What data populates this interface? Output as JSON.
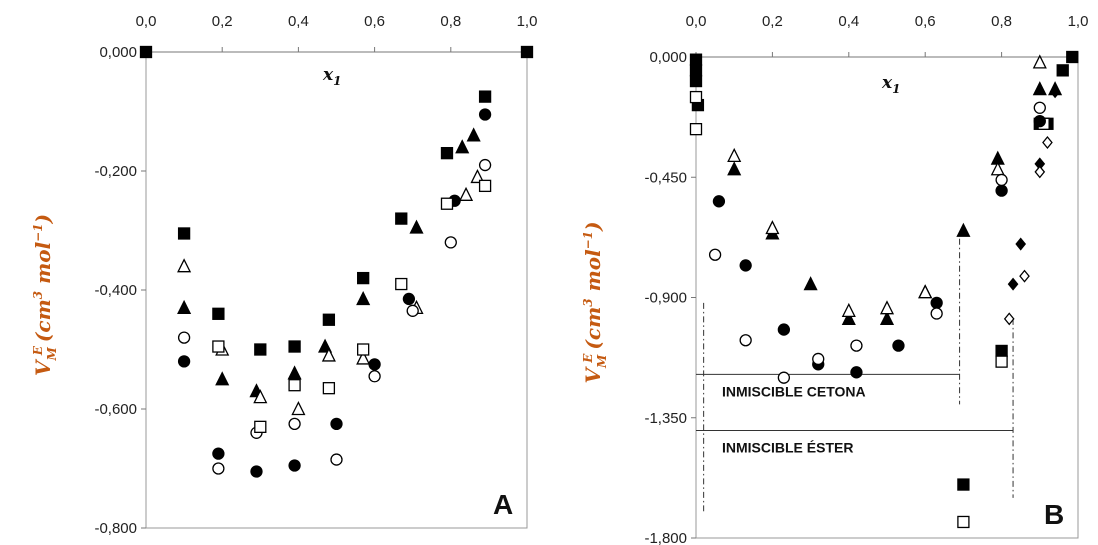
{
  "chart_data": [
    {
      "type": "scatter",
      "panel_label": "A",
      "xlabel_main": "x",
      "xlabel_sub": "1",
      "ylabel": "V",
      "ylabel_sup": "E",
      "ylabel_sub": "M",
      "ylabel_unit_open": "(cm",
      "ylabel_unit_3": "3",
      "ylabel_unit_mid": " mol",
      "ylabel_unit_exp": "−1",
      "ylabel_unit_close": ")",
      "xlim": [
        0,
        1
      ],
      "ylim": [
        -0.8,
        0
      ],
      "x_ticks": [
        "0,0",
        "0,2",
        "0,4",
        "0,6",
        "0,8",
        "1,0"
      ],
      "x_tick_values": [
        0,
        0.2,
        0.4,
        0.6,
        0.8,
        1.0
      ],
      "y_ticks": [
        "0,000",
        "-0,200",
        "-0,400",
        "-0,600",
        "-0,800"
      ],
      "y_tick_values": [
        0,
        -0.2,
        -0.4,
        -0.6,
        -0.8
      ],
      "series": [
        {
          "marker": "square-filled",
          "points": [
            [
              0,
              0
            ],
            [
              0.1,
              -0.305
            ],
            [
              0.19,
              -0.44
            ],
            [
              0.3,
              -0.5
            ],
            [
              0.39,
              -0.495
            ],
            [
              0.48,
              -0.45
            ],
            [
              0.57,
              -0.38
            ],
            [
              0.67,
              -0.28
            ],
            [
              0.79,
              -0.17
            ],
            [
              0.89,
              -0.075
            ],
            [
              1,
              0
            ]
          ]
        },
        {
          "marker": "triangle-filled",
          "points": [
            [
              0.1,
              -0.43
            ],
            [
              0.2,
              -0.55
            ],
            [
              0.29,
              -0.57
            ],
            [
              0.39,
              -0.54
            ],
            [
              0.47,
              -0.495
            ],
            [
              0.57,
              -0.415
            ],
            [
              0.71,
              -0.295
            ],
            [
              0.83,
              -0.16
            ],
            [
              0.86,
              -0.14
            ]
          ]
        },
        {
          "marker": "triangle-open",
          "points": [
            [
              0.1,
              -0.36
            ],
            [
              0.2,
              -0.5
            ],
            [
              0.3,
              -0.58
            ],
            [
              0.4,
              -0.6
            ],
            [
              0.48,
              -0.51
            ],
            [
              0.57,
              -0.515
            ],
            [
              0.71,
              -0.43
            ],
            [
              0.84,
              -0.24
            ],
            [
              0.87,
              -0.21
            ]
          ]
        },
        {
          "marker": "circle-filled",
          "points": [
            [
              0.1,
              -0.52
            ],
            [
              0.19,
              -0.675
            ],
            [
              0.29,
              -0.705
            ],
            [
              0.39,
              -0.695
            ],
            [
              0.5,
              -0.625
            ],
            [
              0.6,
              -0.525
            ],
            [
              0.69,
              -0.415
            ],
            [
              0.81,
              -0.25
            ],
            [
              0.89,
              -0.105
            ]
          ]
        },
        {
          "marker": "circle-open",
          "points": [
            [
              0.1,
              -0.48
            ],
            [
              0.19,
              -0.7
            ],
            [
              0.29,
              -0.64
            ],
            [
              0.39,
              -0.625
            ],
            [
              0.5,
              -0.685
            ],
            [
              0.6,
              -0.545
            ],
            [
              0.7,
              -0.435
            ],
            [
              0.8,
              -0.32
            ],
            [
              0.89,
              -0.19
            ]
          ]
        },
        {
          "marker": "square-open",
          "points": [
            [
              0.19,
              -0.495
            ],
            [
              0.3,
              -0.63
            ],
            [
              0.39,
              -0.56
            ],
            [
              0.48,
              -0.565
            ],
            [
              0.57,
              -0.5
            ],
            [
              0.67,
              -0.39
            ],
            [
              0.79,
              -0.255
            ],
            [
              0.89,
              -0.225
            ]
          ]
        }
      ]
    },
    {
      "type": "scatter",
      "panel_label": "B",
      "xlabel_main": "x",
      "xlabel_sub": "1",
      "ylabel": "V",
      "ylabel_sup": "E",
      "ylabel_sub": "M",
      "ylabel_unit_open": "(cm",
      "ylabel_unit_3": "3",
      "ylabel_unit_mid": " mol",
      "ylabel_unit_exp": "−1",
      "ylabel_unit_close": ")",
      "xlim": [
        0,
        1
      ],
      "ylim": [
        -1.8,
        0
      ],
      "x_ticks": [
        "0,0",
        "0,2",
        "0,4",
        "0,6",
        "0,8",
        "1,0"
      ],
      "x_tick_values": [
        0,
        0.2,
        0.4,
        0.6,
        0.8,
        1.0
      ],
      "y_ticks": [
        "0,000",
        "-0,450",
        "-0,900",
        "-1,350",
        "-1,800"
      ],
      "y_tick_values": [
        0,
        -0.45,
        -0.9,
        -1.35,
        -1.8
      ],
      "annotations": [
        {
          "text": "INMISCIBLE CETONA",
          "x_from": 0,
          "x_to": 0.69,
          "y": -1.27
        },
        {
          "text": "INMISCIBLE ÉSTER",
          "x_from": 0,
          "x_to": 0.83,
          "y": -1.48
        }
      ],
      "boundaries": [
        {
          "x": 0.02,
          "y_from": -0.92,
          "y_to": -1.7
        },
        {
          "x": 0.69,
          "y_from": -0.68,
          "y_to": -1.3
        },
        {
          "x": 0.83,
          "y_from": -0.98,
          "y_to": -1.65
        }
      ],
      "series": [
        {
          "marker": "square-filled",
          "points": [
            [
              0,
              -0.01
            ],
            [
              0,
              -0.05
            ],
            [
              0,
              -0.09
            ],
            [
              0.005,
              -0.18
            ],
            [
              0.8,
              -1.1
            ],
            [
              0.7,
              -1.6
            ],
            [
              0.9,
              -0.25
            ],
            [
              0.92,
              -0.25
            ],
            [
              0.96,
              -0.05
            ],
            [
              0.985,
              0
            ]
          ]
        },
        {
          "marker": "square-open",
          "points": [
            [
              0,
              -0.15
            ],
            [
              0,
              -0.27
            ],
            [
              0.8,
              -1.14
            ],
            [
              0.7,
              -1.74
            ],
            [
              0.91,
              -0.25
            ]
          ]
        },
        {
          "marker": "triangle-filled",
          "points": [
            [
              0.1,
              -0.42
            ],
            [
              0.2,
              -0.66
            ],
            [
              0.3,
              -0.85
            ],
            [
              0.4,
              -0.98
            ],
            [
              0.5,
              -0.98
            ],
            [
              0.6,
              -0.88
            ],
            [
              0.7,
              -0.65
            ],
            [
              0.79,
              -0.38
            ],
            [
              0.9,
              -0.12
            ],
            [
              0.94,
              -0.12
            ]
          ]
        },
        {
          "marker": "triangle-open",
          "points": [
            [
              0.1,
              -0.37
            ],
            [
              0.2,
              -0.64
            ],
            [
              0.4,
              -0.95
            ],
            [
              0.5,
              -0.94
            ],
            [
              0.6,
              -0.88
            ],
            [
              0.79,
              -0.42
            ],
            [
              0.9,
              -0.02
            ]
          ]
        },
        {
          "marker": "circle-filled",
          "points": [
            [
              0.06,
              -0.54
            ],
            [
              0.13,
              -0.78
            ],
            [
              0.23,
              -1.02
            ],
            [
              0.32,
              -1.15
            ],
            [
              0.42,
              -1.18
            ],
            [
              0.53,
              -1.08
            ],
            [
              0.63,
              -0.92
            ],
            [
              0.8,
              -0.5
            ],
            [
              0.9,
              -0.24
            ]
          ]
        },
        {
          "marker": "circle-open",
          "points": [
            [
              0.05,
              -0.74
            ],
            [
              0.13,
              -1.06
            ],
            [
              0.23,
              -1.2
            ],
            [
              0.32,
              -1.13
            ],
            [
              0.42,
              -1.08
            ],
            [
              0.63,
              -0.96
            ],
            [
              0.8,
              -0.46
            ],
            [
              0.9,
              -0.19
            ]
          ]
        },
        {
          "marker": "diamond-filled",
          "points": [
            [
              0.85,
              -0.7
            ],
            [
              0.83,
              -0.85
            ],
            [
              0.9,
              -0.4
            ],
            [
              0.94,
              -0.13
            ]
          ]
        },
        {
          "marker": "diamond-open",
          "points": [
            [
              0.86,
              -0.82
            ],
            [
              0.82,
              -0.98
            ],
            [
              0.9,
              -0.43
            ],
            [
              0.92,
              -0.32
            ]
          ]
        }
      ]
    }
  ]
}
